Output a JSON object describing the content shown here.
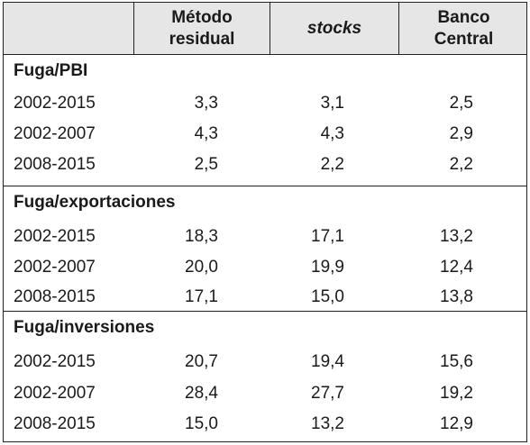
{
  "header": {
    "col0": "",
    "col1_line1": "Método",
    "col1_line2": "residual",
    "col2": "stocks",
    "col3_line1": "Banco",
    "col3_line2": "Central"
  },
  "sections": [
    {
      "title": "Fuga/PBI",
      "rows": [
        {
          "period": "2002-2015",
          "v1": "3,3",
          "v2": "3,1",
          "v3": "2,5"
        },
        {
          "period": "2002-2007",
          "v1": "4,3",
          "v2": "4,3",
          "v3": "2,9"
        },
        {
          "period": "2008-2015",
          "v1": "2,5",
          "v2": "2,2",
          "v3": "2,2"
        }
      ]
    },
    {
      "title": "Fuga/exportaciones",
      "rows": [
        {
          "period": "2002-2015",
          "v1": "18,3",
          "v2": "17,1",
          "v3": "13,2"
        },
        {
          "period": "2002-2007",
          "v1": "20,0",
          "v2": "19,9",
          "v3": "12,4"
        },
        {
          "period": "2008-2015",
          "v1": "17,1",
          "v2": "15,0",
          "v3": "13,8"
        }
      ]
    },
    {
      "title": "Fuga/inversiones",
      "rows": [
        {
          "period": "2002-2015",
          "v1": "20,7",
          "v2": "19,4",
          "v3": "15,6"
        },
        {
          "period": "2002-2007",
          "v1": "28,4",
          "v2": "27,7",
          "v3": "19,2"
        },
        {
          "period": "2008-2015",
          "v1": "15,0",
          "v2": "13,2",
          "v3": "12,9"
        }
      ]
    }
  ]
}
